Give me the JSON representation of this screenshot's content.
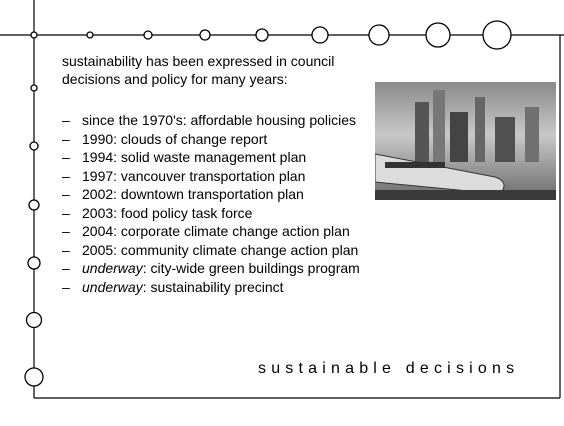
{
  "intro": "sustainability has been expressed in council decisions and policy for many years:",
  "bullet": "–",
  "items": [
    {
      "text": "since the 1970's: affordable housing policies"
    },
    {
      "text": "1990: clouds of change report"
    },
    {
      "text": "1994: solid waste management plan"
    },
    {
      "text": "1997: vancouver transportation plan"
    },
    {
      "text": "2002: downtown transportation plan"
    },
    {
      "text": "2003: food policy task force"
    },
    {
      "text": "2004: corporate climate change action plan"
    },
    {
      "text": "2005: community climate change action plan"
    },
    {
      "em": "underway",
      "text": ": city-wide green buildings program"
    },
    {
      "em": "underway",
      "text": ": sustainability precinct"
    }
  ],
  "footer": "sustainable decisions"
}
